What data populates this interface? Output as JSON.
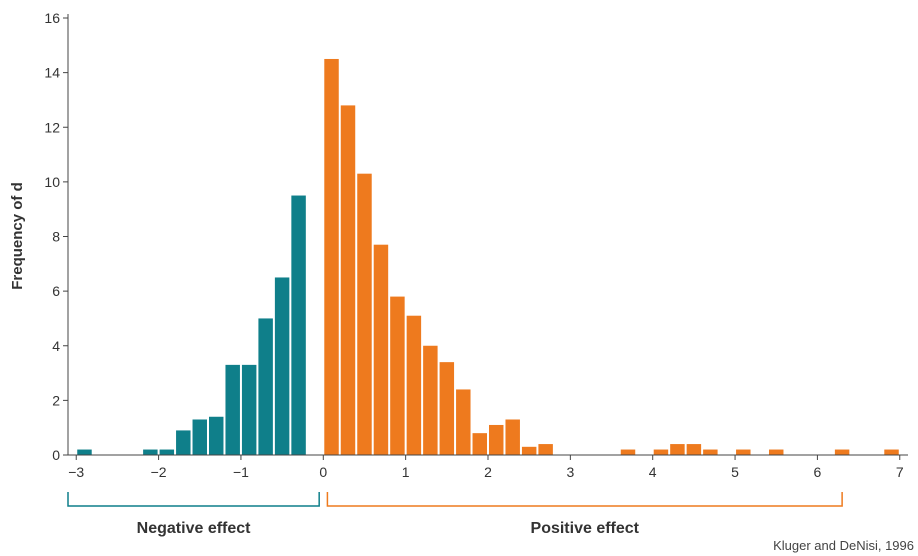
{
  "chart_data": {
    "type": "bar",
    "xlabel": "",
    "ylabel": "Frequency of d",
    "xlim": [
      -3.1,
      7.1
    ],
    "ylim": [
      0,
      16
    ],
    "xticks": [
      -3,
      -2,
      -1,
      0,
      1,
      2,
      3,
      4,
      5,
      6,
      7
    ],
    "xtick_labels": [
      "−3",
      "−2",
      "−1",
      "0",
      "1",
      "2",
      "3",
      "4",
      "5",
      "6",
      "7"
    ],
    "yticks": [
      0,
      2,
      4,
      6,
      8,
      10,
      12,
      14,
      16
    ],
    "ytick_labels": [
      "0",
      "2",
      "4",
      "6",
      "8",
      "10",
      "12",
      "14",
      "16"
    ],
    "bin_width": 0.2,
    "grid": false,
    "legend": "none",
    "colors": {
      "negative": "#0f7f8a",
      "positive": "#ee7a1e"
    },
    "series": [
      {
        "color_key": "negative",
        "x": [
          -2.9,
          -2.1,
          -1.9,
          -1.7,
          -1.5,
          -1.3,
          -1.1,
          -0.9,
          -0.7,
          -0.5,
          -0.3,
          -0.1
        ],
        "values": [
          0.2,
          0.2,
          0.2,
          0.9,
          1.3,
          1.4,
          3.3,
          3.3,
          5.0,
          6.5,
          9.5,
          0
        ]
      },
      {
        "color_key": "positive",
        "x": [
          0.1,
          0.3,
          0.5,
          0.7,
          0.9,
          1.1,
          1.3,
          1.5,
          1.7,
          1.9,
          2.1,
          2.3,
          2.5,
          2.7,
          3.7,
          4.1,
          4.3,
          4.5,
          4.7,
          5.1,
          5.5,
          6.3,
          6.9
        ],
        "values": [
          14.5,
          12.8,
          10.3,
          7.7,
          5.8,
          5.1,
          4.0,
          3.4,
          2.4,
          0.8,
          1.1,
          1.3,
          0.3,
          0.4,
          0.2,
          0.2,
          0.4,
          0.4,
          0.2,
          0.2,
          0.2,
          0.2,
          0.2
        ]
      }
    ],
    "brackets": [
      {
        "label": "Negative effect",
        "from": -3.1,
        "to": -0.05,
        "color_key": "negative"
      },
      {
        "label": "Positive effect",
        "from": 0.05,
        "to": 6.3,
        "color_key": "positive"
      }
    ],
    "source": "Kluger and DeNisi, 1996"
  }
}
